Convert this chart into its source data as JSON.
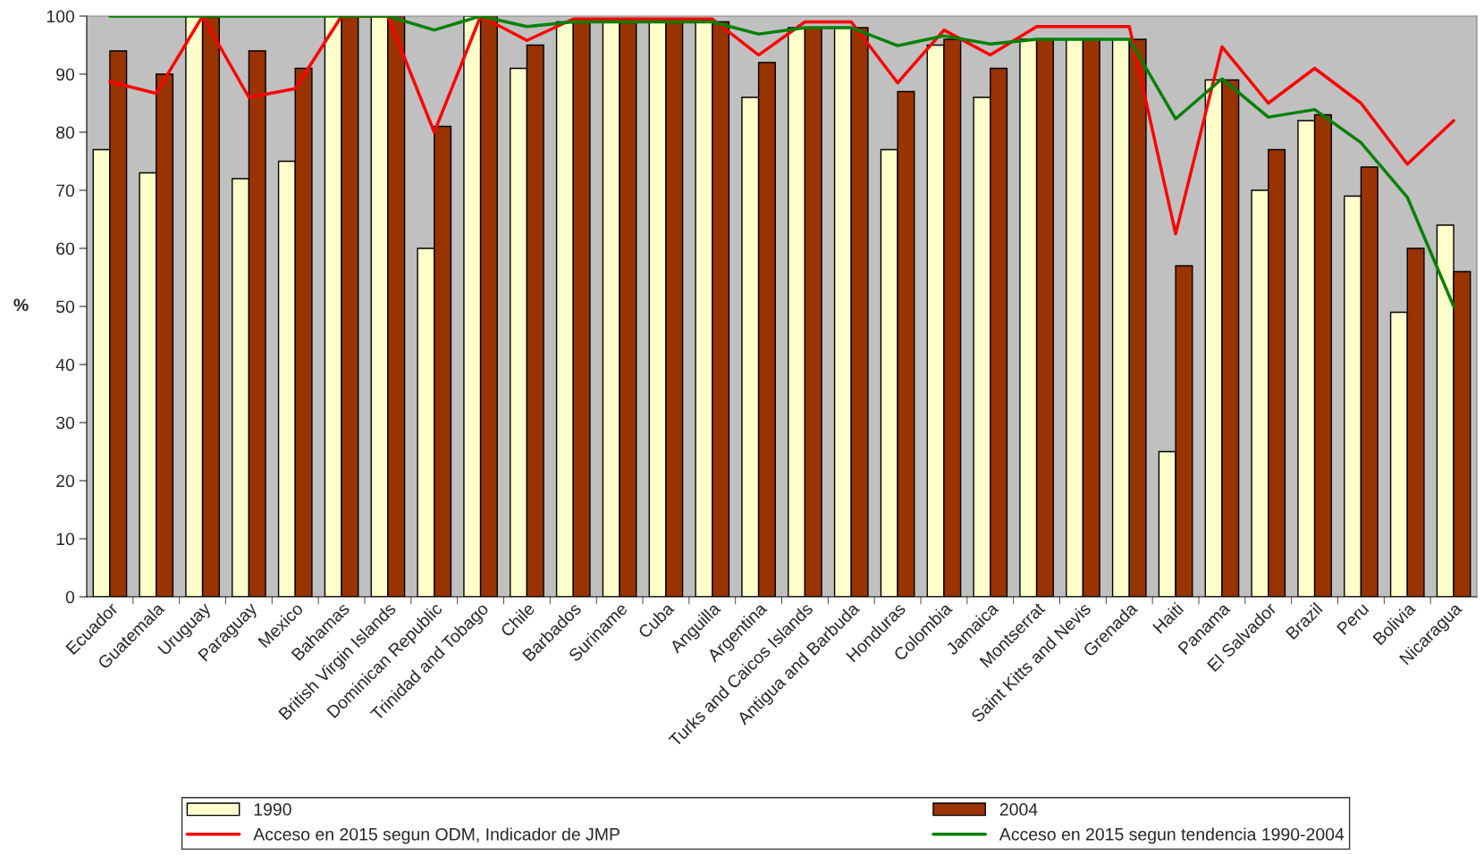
{
  "chart_data": {
    "type": "bar",
    "ylabel": "%",
    "ylim": [
      0,
      100
    ],
    "yticks": [
      0,
      10,
      20,
      30,
      40,
      50,
      60,
      70,
      80,
      90,
      100
    ],
    "grid": false,
    "legend": "bottom",
    "categories": [
      "Ecuador",
      "Guatemala",
      "Uruguay",
      "Paraguay",
      "Mexico",
      "Bahamas",
      "British Virgin Islands",
      "Dominican Republic",
      "Trinidad and Tobago",
      "Chile",
      "Barbados",
      "Suriname",
      "Cuba",
      "Anguilla",
      "Argentina",
      "Turks and Caicos Islands",
      "Antigua and Barbuda",
      "Honduras",
      "Colombia",
      "Jamaica",
      "Montserrat",
      "Saint Kitts and Nevis",
      "Grenada",
      "Haiti",
      "Panama",
      "El Salvador",
      "Brazil",
      "Peru",
      "Bolivia",
      "Nicaragua"
    ],
    "series": [
      {
        "name": "1990",
        "color": "#ffffcc",
        "values": [
          77,
          73,
          100,
          72,
          75,
          100,
          100,
          60,
          100,
          91,
          99,
          99,
          99,
          99,
          86,
          98,
          98,
          77,
          95,
          86,
          96,
          96,
          96,
          25,
          89,
          70,
          82,
          69,
          49,
          64
        ]
      },
      {
        "name": "2004",
        "color": "#993300",
        "values": [
          94,
          90,
          100,
          94,
          91,
          100,
          100,
          81,
          100,
          95,
          99,
          99,
          99,
          99,
          92,
          98,
          98,
          87,
          96,
          91,
          96,
          96,
          96,
          57,
          89,
          77,
          83,
          74,
          60,
          56
        ]
      },
      {
        "name": "Acceso en 2015 segun ODM, Indicador de JMP",
        "type": "line",
        "color": "#ff0000",
        "values": [
          88.7,
          86.7,
          100,
          86,
          87.5,
          100,
          100,
          80,
          100,
          95.8,
          99.5,
          99.5,
          99.5,
          99.5,
          93.3,
          99,
          99,
          88.5,
          97.6,
          93.3,
          98.2,
          98.2,
          98.2,
          62.5,
          94.7,
          85,
          91,
          85,
          74.5,
          82
        ]
      },
      {
        "name": "Acceso en 2015 segun tendencia 1990-2004",
        "type": "line",
        "color": "#008000",
        "values": [
          100,
          100,
          100,
          100,
          100,
          100,
          100,
          97.6,
          100,
          98.2,
          99,
          99,
          99,
          99,
          96.9,
          98,
          98,
          94.9,
          96.6,
          95.2,
          96,
          96,
          96,
          82.3,
          89.2,
          82.6,
          83.9,
          78.2,
          68.8,
          50
        ]
      }
    ]
  }
}
